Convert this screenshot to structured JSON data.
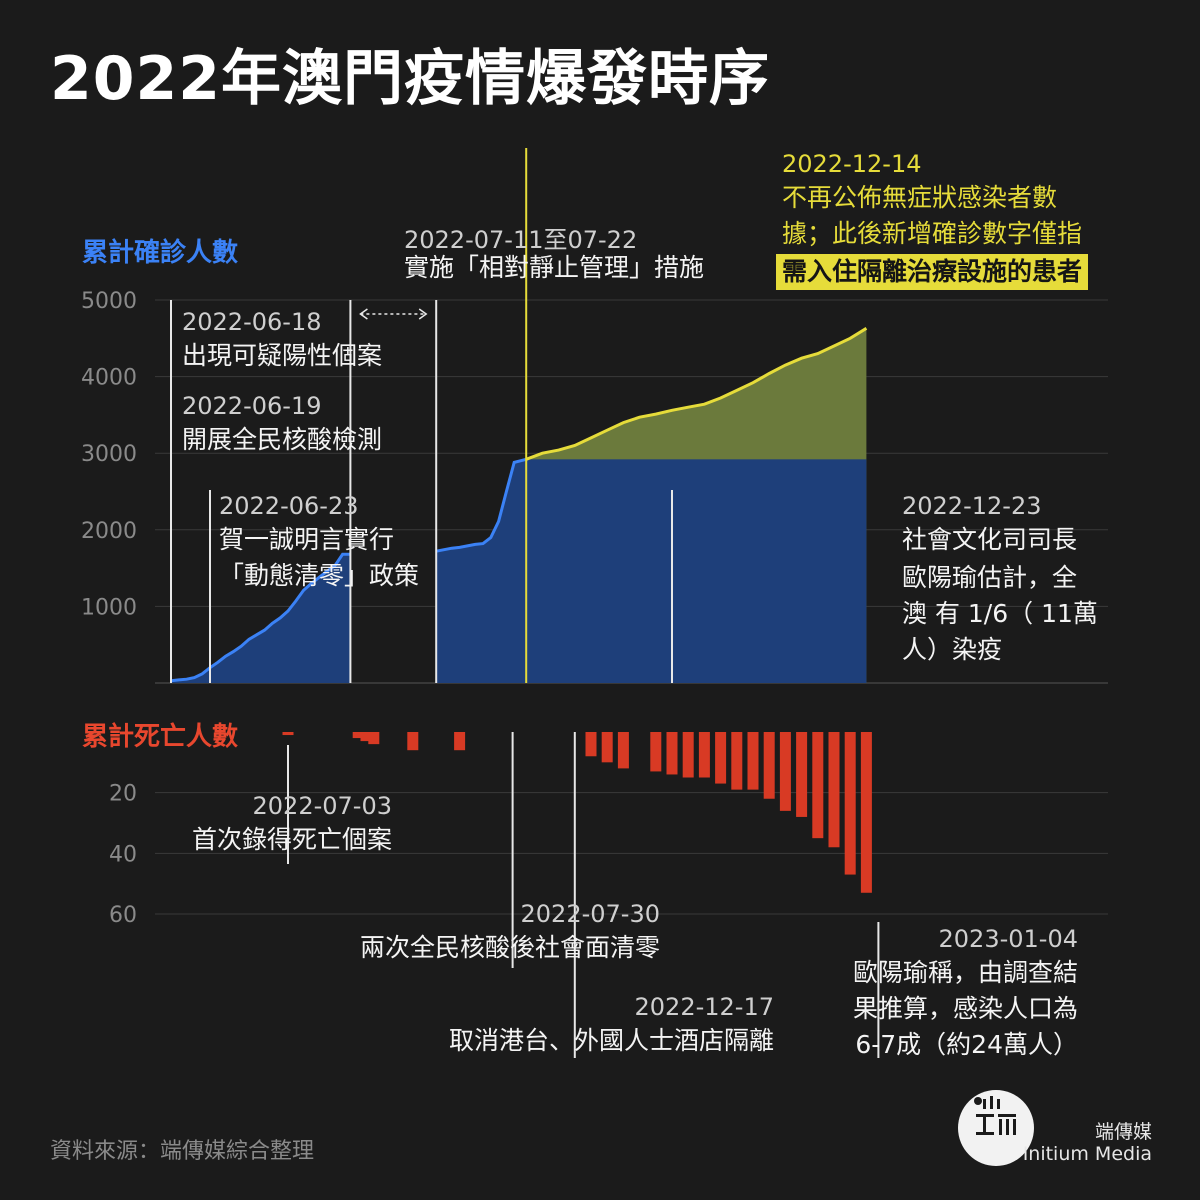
{
  "title": "2022年澳門疫情爆發時序",
  "source": "資料來源：端傳媒綜合整理",
  "brand": {
    "name_cn": "端傳媒",
    "name_en": "Initium Media"
  },
  "colors": {
    "cases": "#1e3f7a",
    "cases_line": "#3b82f6",
    "estimate": "#6b7a3c",
    "estimate_line": "#e6dc3a",
    "deaths": "#d83a24",
    "background": "#1b1b1b"
  },
  "annotations": {
    "a0618": {
      "date": "2022-06-18",
      "text": "出現可疑陽性個案"
    },
    "a0619": {
      "date": "2022-06-19",
      "text": "開展全民核酸檢測"
    },
    "a0623": {
      "date": "2022-06-23",
      "line1": "賀一誠明言實行",
      "line2": "「動態清零」政策"
    },
    "a0711": {
      "date": "2022-07-11至07-22",
      "text": "實施「相對靜止管理」措施"
    },
    "a1214": {
      "date": "2022-12-14",
      "line1": "不再公佈無症狀感染者數",
      "line2": "據；此後新增確診數字僅指",
      "line3": "需入住隔離治療設施的患者"
    },
    "a1223": {
      "date": "2022-12-23",
      "line1": "社會文化司司長",
      "line2": "歐陽瑜估計，全",
      "line3": "澳 有 1/6（ 11萬",
      "line4": "人）染疫"
    },
    "a0703": {
      "date": "2022-07-03",
      "text": "首次錄得死亡個案"
    },
    "a0730": {
      "date": "2022-07-30",
      "text": "兩次全民核酸後社會面清零"
    },
    "a1217": {
      "date": "2022-12-17",
      "text": "取消港台、外國人士酒店隔離"
    },
    "a0104": {
      "date": "2023-01-04",
      "line1": "歐陽瑜稱，由調查結",
      "line2": "果推算，感染人口為",
      "line3": "6-7成（約24萬人）"
    }
  },
  "chart_data": [
    {
      "type": "area",
      "title": "累計確診人數",
      "ylim": [
        0,
        5000
      ],
      "yticks": [
        "1000",
        "2000",
        "3000",
        "4000",
        "5000"
      ],
      "segment1": {
        "x": [
          "2022-06-18",
          "2022-06-19",
          "2022-06-20",
          "2022-06-21",
          "2022-06-22",
          "2022-06-23",
          "2022-06-24",
          "2022-06-25",
          "2022-06-26",
          "2022-06-27",
          "2022-06-28",
          "2022-06-29",
          "2022-06-30",
          "2022-07-01",
          "2022-07-02",
          "2022-07-03",
          "2022-07-04",
          "2022-07-05",
          "2022-07-06",
          "2022-07-07",
          "2022-07-08",
          "2022-07-09",
          "2022-07-10",
          "2022-07-11"
        ],
        "values": [
          30,
          40,
          50,
          70,
          120,
          200,
          270,
          350,
          410,
          480,
          570,
          630,
          690,
          780,
          850,
          940,
          1070,
          1210,
          1300,
          1380,
          1460,
          1530,
          1680,
          1680
        ]
      },
      "segment2": {
        "x": [
          "2022-07-22",
          "2022-07-23",
          "2022-07-24",
          "2022-07-25",
          "2022-07-26",
          "2022-07-27",
          "2022-07-28",
          "2022-07-29",
          "2022-07-30",
          "2022-07-31",
          "2022-08-01",
          "2022-12-14"
        ],
        "values": [
          1720,
          1740,
          1760,
          1770,
          1790,
          1810,
          1820,
          1900,
          2110,
          2500,
          2880,
          2920
        ]
      },
      "confirmed_plateau": 2920,
      "series_after_1214": {
        "x": [
          "2022-12-14",
          "2022-12-15",
          "2022-12-16",
          "2022-12-17",
          "2022-12-18",
          "2022-12-19",
          "2022-12-20",
          "2022-12-21",
          "2022-12-22",
          "2022-12-23",
          "2022-12-24",
          "2022-12-25",
          "2022-12-26",
          "2022-12-27",
          "2022-12-28",
          "2022-12-29",
          "2022-12-30",
          "2022-12-31",
          "2023-01-01",
          "2023-01-02",
          "2023-01-03",
          "2023-01-04"
        ],
        "values": [
          2920,
          3000,
          3040,
          3100,
          3200,
          3300,
          3400,
          3470,
          3510,
          3560,
          3600,
          3640,
          3720,
          3820,
          3920,
          4040,
          4150,
          4240,
          4300,
          4400,
          4500,
          4630
        ]
      }
    },
    {
      "type": "bar",
      "title": "累計死亡人數",
      "ylim": [
        0,
        60
      ],
      "yticks": [
        "20",
        "40",
        "60"
      ],
      "x": [
        "2022-07-03",
        "2022-07-12",
        "2022-07-13",
        "2022-07-14",
        "2022-07-19",
        "2022-07-25",
        "2022-12-18",
        "2022-12-19",
        "2022-12-20",
        "2022-12-22",
        "2022-12-23",
        "2022-12-24",
        "2022-12-25",
        "2022-12-26",
        "2022-12-27",
        "2022-12-28",
        "2022-12-29",
        "2022-12-30",
        "2022-12-31",
        "2023-01-01",
        "2023-01-02",
        "2023-01-03",
        "2023-01-04"
      ],
      "values": [
        1,
        2,
        3,
        4,
        6,
        6,
        8,
        10,
        12,
        13,
        14,
        15,
        15,
        17,
        19,
        19,
        22,
        26,
        28,
        35,
        38,
        47,
        53
      ]
    }
  ]
}
